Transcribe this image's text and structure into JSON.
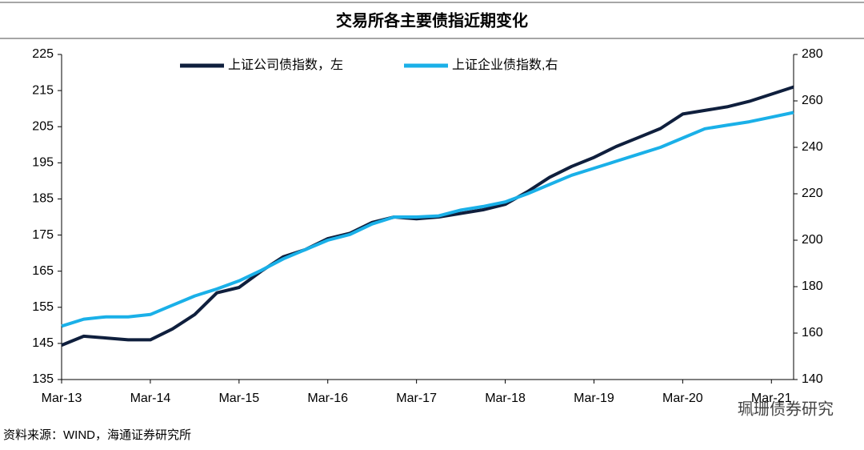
{
  "chart_data": {
    "type": "line",
    "title": "交易所各主要债指近期变化",
    "categories": [
      "Mar-13",
      null,
      null,
      null,
      "Mar-14",
      null,
      null,
      null,
      "Mar-15",
      null,
      null,
      null,
      "Mar-16",
      null,
      null,
      null,
      "Mar-17",
      null,
      null,
      null,
      "Mar-18",
      null,
      null,
      null,
      "Mar-19",
      null,
      null,
      null,
      "Mar-20",
      null,
      null,
      null,
      "Mar-21",
      null
    ],
    "series": [
      {
        "name": "上证公司债指数，左",
        "color": "#0f1f3d",
        "axis": "y",
        "values": [
          144.5,
          147,
          146.5,
          146,
          146,
          149,
          153,
          159,
          160.5,
          165,
          169,
          171,
          174,
          175.5,
          178.5,
          180,
          179.5,
          180,
          181,
          182,
          183.5,
          187,
          191,
          194,
          196.5,
          199.5,
          202,
          204.5,
          208.5,
          209.5,
          210.5,
          212,
          214,
          216
        ]
      },
      {
        "name": "上证企业债指数,右",
        "color": "#1ab0e8",
        "axis": "y2",
        "values": [
          163,
          166,
          167,
          167,
          168,
          172,
          176,
          179,
          182.5,
          187,
          192,
          196,
          200,
          202.5,
          207,
          210,
          210,
          210.5,
          213,
          214.5,
          216.5,
          220,
          224,
          228,
          231,
          234,
          237,
          240,
          244,
          248,
          249.5,
          251,
          253,
          255
        ]
      }
    ],
    "ylim": [
      135,
      225
    ],
    "yticks": [
      135,
      145,
      155,
      165,
      175,
      185,
      195,
      205,
      215,
      225
    ],
    "y2lim": [
      140,
      280
    ],
    "y2ticks": [
      140,
      160,
      180,
      200,
      220,
      240,
      260,
      280
    ],
    "source": "资料来源：WIND，海通证券研究所",
    "watermark": "珮珊债券研究"
  }
}
